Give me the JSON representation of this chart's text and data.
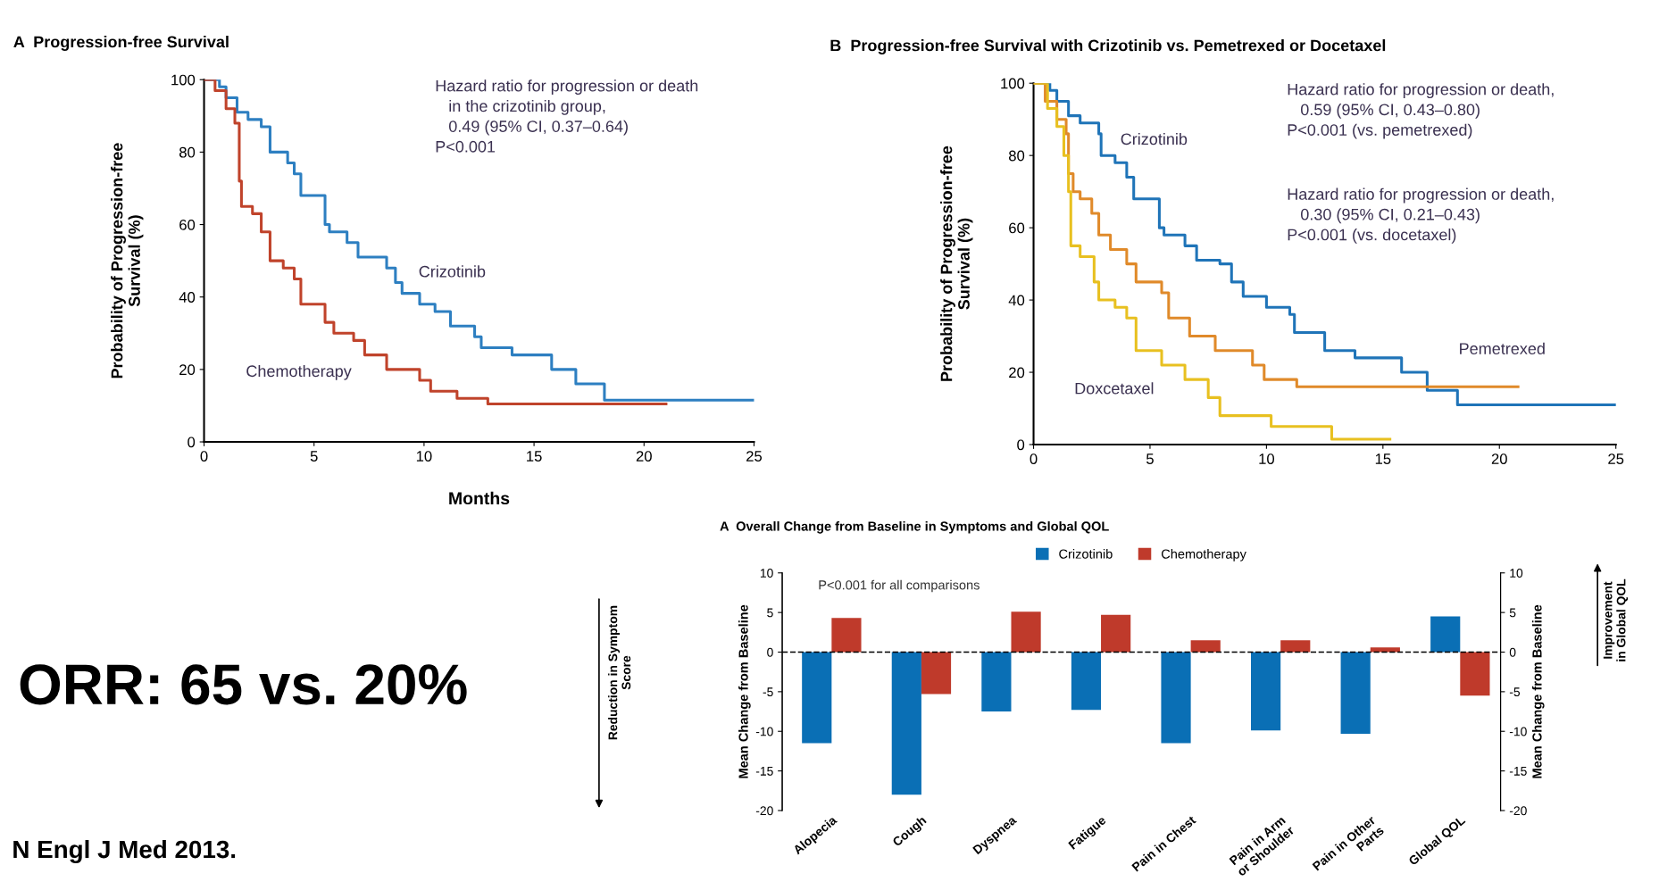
{
  "chart_data": [
    {
      "type": "step",
      "title": "A  Progression-free Survival",
      "xlabel": "Months",
      "ylabel": "Probability of Progression-free\nSurvival (%)",
      "xlim": [
        0,
        25
      ],
      "ylim": [
        0,
        100
      ],
      "xticks": [
        0,
        5,
        10,
        15,
        20,
        25
      ],
      "yticks": [
        0,
        20,
        40,
        60,
        80,
        100
      ],
      "grid": false,
      "legend": false,
      "annotations": [
        "Hazard ratio for progression or death\n   in the crizotinib group,\n   0.49 (95% CI, 0.37–0.64)\nP<0.001"
      ],
      "series": [
        {
          "name": "Crizotinib",
          "color": "#2d7fc1",
          "x": [
            0,
            0.7,
            1,
            1.5,
            2,
            2.6,
            3,
            3.8,
            4.1,
            4.4,
            5.5,
            5.7,
            6.5,
            7,
            8.3,
            8.7,
            9,
            9.8,
            10.5,
            11.2,
            12.3,
            12.6,
            14,
            15.8,
            16.9,
            18.2,
            25
          ],
          "values": [
            100,
            98,
            95,
            91,
            89,
            87,
            80,
            77,
            74,
            68,
            60,
            58,
            55,
            51,
            48,
            44,
            41,
            38,
            36,
            32,
            29,
            26,
            24,
            20,
            16,
            11.5,
            11.5
          ]
        },
        {
          "name": "Chemotherapy",
          "color": "#c0432b",
          "x": [
            0,
            0.5,
            1,
            1.4,
            1.6,
            1.7,
            2.2,
            2.6,
            3,
            3.6,
            4.1,
            4.4,
            5.5,
            5.9,
            6.8,
            7.3,
            8.3,
            9.8,
            10.3,
            11.5,
            12.9,
            21
          ],
          "values": [
            100,
            97,
            92,
            88,
            72,
            65,
            63,
            58,
            50,
            48,
            45,
            38,
            33,
            30,
            28,
            24,
            20,
            17,
            14,
            12,
            10.5,
            10.5
          ]
        }
      ]
    },
    {
      "type": "step",
      "title": "B  Progression-free Survival with Crizotinib vs. Pemetrexed or Docetaxel",
      "ylabel": "Probability of Progression-free\nSurvival (%)",
      "xlim": [
        0,
        25
      ],
      "ylim": [
        0,
        100
      ],
      "xticks": [
        0,
        5,
        10,
        15,
        20,
        25
      ],
      "yticks": [
        0,
        20,
        40,
        60,
        80,
        100
      ],
      "grid": false,
      "legend": false,
      "annotations": [
        "Hazard ratio for progression or death,\n   0.59 (95% CI, 0.43–0.80)\nP<0.001 (vs. pemetrexed)",
        "Hazard ratio for progression or death,\n   0.30 (95% CI, 0.21–0.43)\nP<0.001 (vs. docetaxel)"
      ],
      "series": [
        {
          "name": "Crizotinib",
          "color": "#1f74b8",
          "x": [
            0,
            0.7,
            1,
            1.5,
            2,
            2.8,
            2.9,
            3.5,
            4,
            4.3,
            5.4,
            5.6,
            6.5,
            7,
            8,
            8.5,
            9,
            10,
            11,
            11.2,
            12.5,
            13.8,
            15.8,
            16.9,
            18.2,
            25
          ],
          "values": [
            100,
            98,
            95,
            91,
            89,
            86,
            80,
            78,
            74,
            68,
            60,
            58,
            55,
            51,
            50,
            45,
            41,
            38,
            36,
            31,
            26,
            24,
            20,
            15,
            11,
            11
          ]
        },
        {
          "name": "Pemetrexed",
          "color": "#e08a2a",
          "x": [
            0,
            0.5,
            1,
            1.4,
            1.5,
            1.7,
            2,
            2.5,
            2.8,
            3.3,
            4,
            4.4,
            5.5,
            5.8,
            6.7,
            7.8,
            9.4,
            9.9,
            11.3,
            20.8
          ],
          "values": [
            100,
            95,
            90,
            86,
            75,
            70,
            68,
            64,
            58,
            54,
            50,
            45,
            42,
            35,
            30,
            26,
            22,
            18,
            16,
            16
          ]
        },
        {
          "name": "Doxcetaxel",
          "color": "#e8c020",
          "x": [
            0,
            0.6,
            1,
            1.3,
            1.5,
            1.6,
            2,
            2.6,
            2.8,
            3.5,
            4,
            4.4,
            5.5,
            6.5,
            7.5,
            8,
            10.2,
            12.8,
            15.3
          ],
          "values": [
            100,
            93,
            88,
            80,
            70,
            55,
            52,
            45,
            40,
            38,
            35,
            26,
            22,
            18,
            13,
            8,
            5,
            1.5,
            1.5
          ]
        }
      ]
    },
    {
      "type": "other",
      "annotations": [
        "ORR: 65 vs. 20%",
        "N Engl J Med 2013."
      ]
    },
    {
      "type": "bar",
      "title": "A  Overall Change from Baseline in Symptoms and Global QOL",
      "categories": [
        "Alopecia",
        "Cough",
        "Dyspnea",
        "Fatigue",
        "Pain in Chest",
        "Pain in Arm\nor Shoulder",
        "Pain in Other\nParts",
        "Global QOL"
      ],
      "ylabel": "Mean Change from Baseline",
      "y2label": "Mean Change from Baseline",
      "ylim": [
        -20,
        10
      ],
      "yticks": [
        -20,
        -15,
        -10,
        -5,
        0,
        5,
        10
      ],
      "y2lim": [
        -20,
        10
      ],
      "y2ticks": [
        -20,
        -15,
        -10,
        -5,
        0,
        5,
        10
      ],
      "grid": false,
      "legend": "top",
      "ref_lines": [
        {
          "axis": "y",
          "value": 0,
          "color": "#000000",
          "line_style": "dashed"
        }
      ],
      "annotations": [
        "P<0.001 for all comparisons",
        "Reduction in Symptom\nScore",
        "Improvement\nin Global QOL"
      ],
      "series": [
        {
          "name": "Crizotinib",
          "color": "#0a6fb5",
          "values": [
            -11.5,
            -18,
            -7.5,
            -7.3,
            -11.5,
            -9.9,
            -10.3,
            4.5
          ]
        },
        {
          "name": "Chemotherapy",
          "color": "#bf3a2b",
          "values": [
            4.3,
            -5.3,
            5.1,
            4.7,
            1.5,
            1.5,
            0.6,
            -5.5
          ]
        }
      ]
    }
  ]
}
